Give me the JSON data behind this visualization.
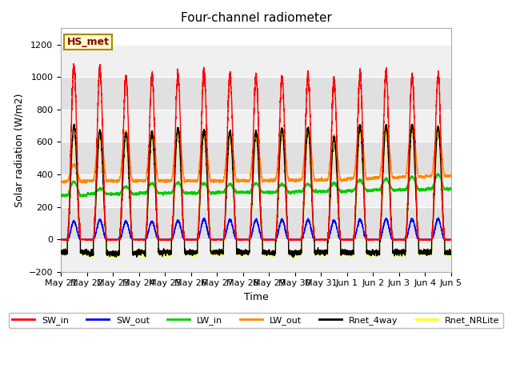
{
  "title": "Four-channel radiometer",
  "xlabel": "Time",
  "ylabel": "Solar radiation (W/m2)",
  "ylim": [
    -200,
    1300
  ],
  "yticks": [
    -200,
    0,
    200,
    400,
    600,
    800,
    1000,
    1200
  ],
  "date_labels": [
    "May 21",
    "May 22",
    "May 23",
    "May 24",
    "May 25",
    "May 26",
    "May 27",
    "May 28",
    "May 29",
    "May 30",
    "May 31",
    "Jun 1",
    "Jun 2",
    "Jun 3",
    "Jun 4",
    "Jun 5"
  ],
  "station_label": "HS_met",
  "fig_facecolor": "#ffffff",
  "plot_bg_color": "#ffffff",
  "band_color_light": "#f0f0f0",
  "band_color_dark": "#e0e0e0",
  "grid_color": "#cccccc",
  "colors": {
    "SW_in": "#ff0000",
    "SW_out": "#0000ff",
    "LW_in": "#00cc00",
    "LW_out": "#ff8800",
    "Rnet_4way": "#000000",
    "Rnet_NRLite": "#ffff00"
  },
  "n_days": 15,
  "peak_SW_in": [
    1060,
    1050,
    1000,
    1000,
    1010,
    1040,
    1010,
    1000,
    1000,
    1000,
    980,
    1010,
    1020,
    1010,
    1005
  ],
  "peak_SW_out": [
    110,
    120,
    110,
    110,
    115,
    125,
    120,
    120,
    120,
    120,
    115,
    120,
    125,
    125,
    125
  ],
  "night_LW_in": [
    270,
    280,
    280,
    285,
    285,
    285,
    290,
    290,
    290,
    295,
    295,
    300,
    305,
    305,
    310
  ],
  "peak_LW_in": [
    355,
    310,
    325,
    345,
    350,
    345,
    340,
    345,
    340,
    340,
    345,
    365,
    370,
    385,
    400
  ],
  "night_LW_out": [
    355,
    360,
    360,
    360,
    360,
    360,
    360,
    360,
    365,
    365,
    365,
    375,
    380,
    385,
    390
  ],
  "peak_LW_out": [
    460,
    665,
    665,
    665,
    680,
    670,
    660,
    665,
    680,
    680,
    640,
    700,
    695,
    700,
    695
  ],
  "peak_Rnet_4way": [
    700,
    665,
    650,
    655,
    680,
    670,
    660,
    655,
    680,
    680,
    625,
    700,
    695,
    700,
    690
  ],
  "night_Rnet_4way": [
    -80,
    -85,
    -85,
    -80,
    -80,
    -80,
    -80,
    -80,
    -85,
    -80,
    -80,
    -80,
    -80,
    -80,
    -80
  ],
  "linewidth": 1.0,
  "legend_fontsize": 8,
  "title_fontsize": 11,
  "label_fontsize": 9,
  "tick_fontsize": 8
}
